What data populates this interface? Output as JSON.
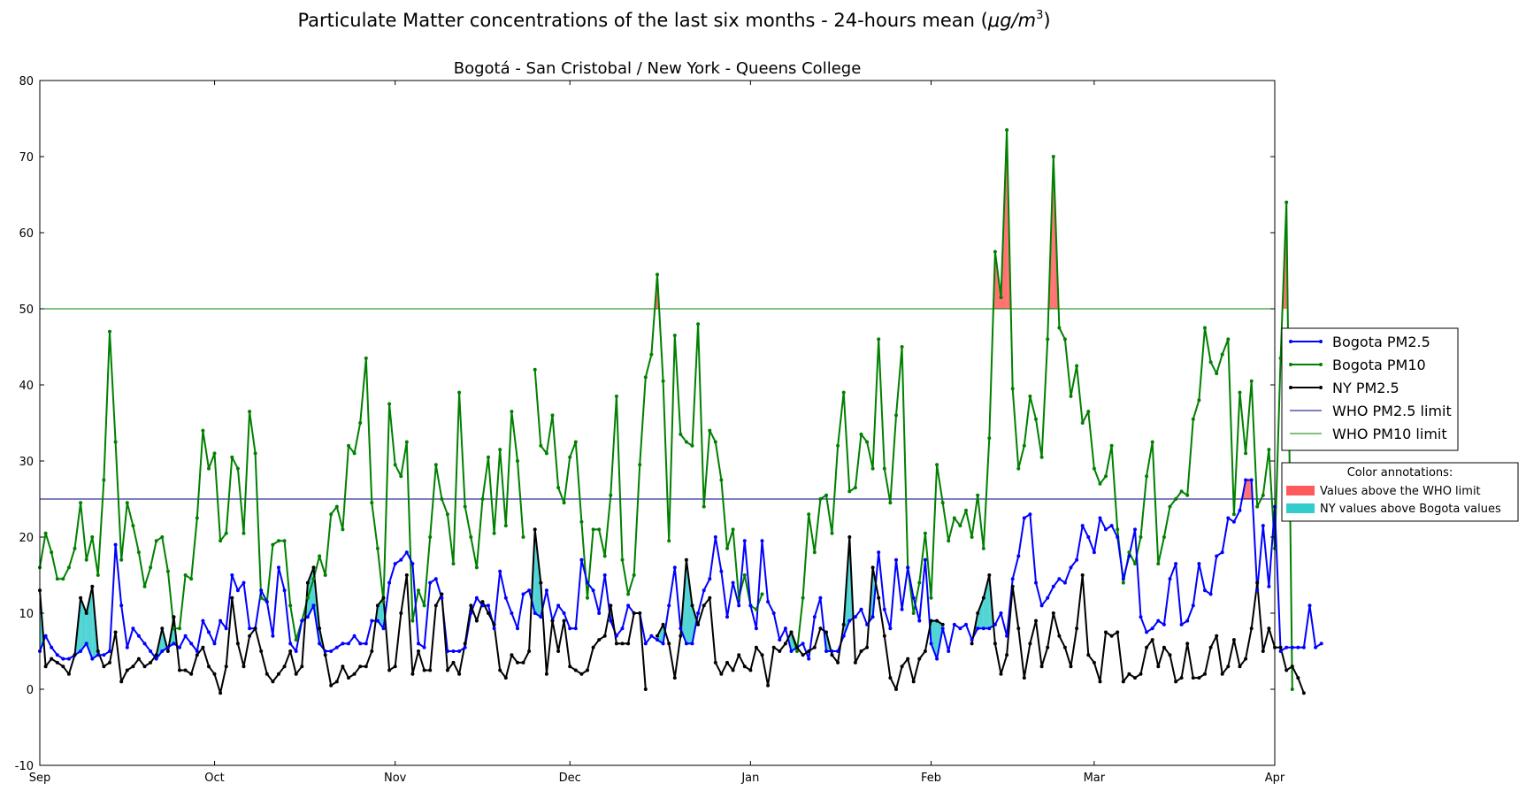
{
  "chart_data": {
    "type": "line",
    "title": "Particulate Matter concentrations of the last six months - 24-hours mean (μg/m³)",
    "title_text": "Particulate Matter concentrations of the last six months - 24-hours mean (",
    "title_unit": "μg/m",
    "title_exp": "3",
    "title_close": ")",
    "subtitle": "Bogotá - San Cristobal / New York - Queens College",
    "xlabel": "",
    "ylabel": "",
    "x_start": "Sep 1",
    "x_end": "Apr 1",
    "x_ticks": [
      {
        "day": 0,
        "label": "Sep"
      },
      {
        "day": 30,
        "label": "Oct"
      },
      {
        "day": 61,
        "label": "Nov"
      },
      {
        "day": 91,
        "label": "Dec"
      },
      {
        "day": 122,
        "label": "Jan"
      },
      {
        "day": 153,
        "label": "Feb"
      },
      {
        "day": 181,
        "label": "Mar"
      },
      {
        "day": 212,
        "label": "Apr"
      }
    ],
    "ylim": [
      -10,
      80
    ],
    "y_ticks": [
      -10,
      0,
      10,
      20,
      30,
      40,
      50,
      60,
      70,
      80
    ],
    "grid": false,
    "series": [
      {
        "name": "Bogota PM2.5",
        "color": "#0000ff",
        "values": [
          5,
          7,
          5.5,
          4.5,
          4,
          4,
          4.5,
          5,
          6,
          4,
          4.5,
          4.5,
          5,
          19,
          11,
          5.5,
          8,
          7,
          6,
          5,
          4,
          5,
          5.5,
          6,
          5.5,
          7,
          6,
          5,
          9,
          7.5,
          6,
          9,
          8,
          15,
          13,
          14,
          8,
          8,
          13,
          11.5,
          7,
          16,
          13,
          6,
          5,
          9,
          9.5,
          11,
          6,
          5,
          5,
          5.5,
          6,
          6,
          7,
          6,
          6,
          9,
          9,
          8,
          14,
          16.5,
          17,
          18,
          16.5,
          6,
          5.5,
          14,
          14.5,
          12,
          5,
          5,
          5,
          5.5,
          10,
          12,
          11,
          11,
          8,
          15.5,
          12,
          10,
          8,
          12.5,
          13,
          10,
          9.5,
          13,
          9,
          11,
          10,
          8,
          8,
          17,
          14,
          13,
          10,
          15,
          9,
          7,
          8,
          11,
          10,
          10,
          6,
          7,
          6.5,
          6,
          11,
          16,
          8,
          6,
          6,
          10,
          13,
          14.5,
          20,
          15.5,
          9.5,
          14,
          11,
          19.5,
          11,
          8,
          19.5,
          11.5,
          10,
          6.5,
          8,
          5,
          5.5,
          6,
          4,
          9.5,
          12,
          5,
          5,
          5,
          7,
          9,
          9.5,
          10.5,
          8.5,
          9.5,
          18,
          10.5,
          8,
          17,
          10.5,
          16,
          12,
          9,
          17,
          6,
          4,
          8,
          5,
          8.5,
          8,
          8.5,
          6.5,
          8,
          8,
          8,
          8.5,
          10,
          7,
          14.5,
          17.5,
          22.5,
          23,
          14,
          11,
          12,
          13.5,
          14.5,
          14,
          16,
          17,
          21.5,
          20,
          18,
          22.5,
          21,
          21.5,
          20,
          14.5,
          17.5,
          21,
          9.5,
          7.5,
          8,
          9,
          8.5,
          14.5,
          16.5,
          8.5,
          9,
          11,
          16.5,
          13,
          12.5,
          17.5,
          18,
          22.5,
          22,
          23.5,
          27.5,
          27.5,
          13,
          21.5,
          13.5,
          24,
          5,
          5.5,
          5.5,
          5.5,
          5.5,
          11,
          5.5,
          6
        ]
      },
      {
        "name": "Bogota PM10",
        "color": "#008000",
        "values": [
          16,
          20.5,
          18,
          14.5,
          14.5,
          16,
          18.5,
          24.5,
          17,
          20,
          15,
          27.5,
          47,
          32.5,
          17,
          24.5,
          21.5,
          18,
          13.5,
          16,
          19.5,
          20,
          15.5,
          8,
          8,
          15,
          14.5,
          22.5,
          34,
          29,
          31,
          19.5,
          20.5,
          30.5,
          29,
          20.5,
          36.5,
          31,
          12,
          11.5,
          19,
          19.5,
          19.5,
          11,
          6.5,
          9,
          12,
          14.5,
          17.5,
          15,
          23,
          24,
          21,
          32,
          31,
          35,
          43.5,
          24.5,
          18.5,
          11.5,
          37.5,
          29.5,
          28,
          32.5,
          9,
          13,
          11,
          20,
          29.5,
          25,
          23,
          16.5,
          39,
          24,
          20,
          16,
          25,
          30.5,
          20.5,
          31.5,
          21.5,
          36.5,
          30,
          20,
          null,
          42,
          32,
          31,
          36,
          26.5,
          24.5,
          30.5,
          32.5,
          22,
          12,
          21,
          21,
          17.5,
          25.5,
          38.5,
          17,
          12.5,
          15,
          29.5,
          41,
          44,
          54.5,
          40.5,
          19.5,
          46.5,
          33.5,
          32.5,
          32,
          48,
          24,
          34,
          32.5,
          27.5,
          18.5,
          21,
          12,
          15,
          11,
          10.5,
          12.5,
          null,
          null,
          null,
          null,
          7.5,
          5,
          12,
          23,
          18,
          25,
          25.5,
          20.5,
          32,
          39,
          26,
          26.5,
          33.5,
          32.5,
          29,
          46,
          29,
          24.5,
          36,
          45,
          16,
          10,
          14,
          20.5,
          12,
          29.5,
          24.5,
          19.5,
          22.5,
          21.5,
          23.5,
          20,
          25.5,
          18.5,
          33,
          57.5,
          51.5,
          73.5,
          39.5,
          29,
          32,
          38.5,
          35.5,
          30.5,
          46,
          70,
          47.5,
          46,
          38.5,
          42.5,
          35,
          36.5,
          29,
          27,
          28,
          32,
          21,
          14,
          18,
          16.5,
          20,
          28,
          32.5,
          16.5,
          20,
          24,
          25,
          26,
          25.5,
          35.5,
          38,
          47.5,
          43,
          41.5,
          44,
          46,
          23,
          39,
          31,
          40.5,
          24,
          25.5,
          31.5,
          18.5,
          43.5,
          64,
          0
        ]
      },
      {
        "name": "NY PM2.5",
        "color": "#000000",
        "values": [
          13,
          3,
          4,
          3.5,
          3,
          2,
          4.5,
          12,
          10,
          13.5,
          5,
          3,
          3.5,
          7.5,
          1,
          2.5,
          3,
          4,
          3,
          3.5,
          4.5,
          8,
          5,
          9.5,
          2.5,
          2.5,
          2,
          4.5,
          5.5,
          3,
          2,
          -0.5,
          3,
          12,
          6,
          3,
          7,
          8,
          5,
          2,
          1,
          2,
          3,
          5,
          2,
          3,
          14,
          16,
          8,
          4.5,
          0.5,
          1,
          3,
          1.5,
          2,
          3,
          3,
          5,
          11,
          12,
          2.5,
          3,
          10,
          15,
          2,
          5,
          2.5,
          2.5,
          11,
          12.5,
          2.5,
          3.5,
          2,
          6,
          11,
          9,
          11.5,
          10,
          8.5,
          2.5,
          1.5,
          4.5,
          3.5,
          3.5,
          5,
          21,
          14,
          2,
          9,
          5,
          9,
          3,
          2.5,
          2,
          2.5,
          5.5,
          6.5,
          7,
          11,
          6,
          6,
          6,
          10,
          10,
          0,
          null,
          7,
          8.5,
          6,
          1.5,
          7,
          17,
          11,
          8.5,
          11,
          12,
          3.5,
          2,
          3.5,
          2.5,
          4.5,
          3,
          2.5,
          5.5,
          4.5,
          0.5,
          5.5,
          5,
          6,
          7.5,
          5.5,
          4.5,
          5,
          5.5,
          8,
          7.5,
          4.5,
          3.5,
          8.5,
          20,
          3.5,
          5,
          5.5,
          16,
          12,
          7,
          1.5,
          0,
          3,
          4,
          1,
          4,
          5,
          9,
          9,
          8.5,
          null,
          null,
          null,
          null,
          6,
          10,
          12,
          15,
          6,
          2,
          4.5,
          13.5,
          8,
          1.5,
          6,
          9,
          3,
          5.5,
          10,
          7,
          5.5,
          3,
          8,
          15,
          4.5,
          3.5,
          1,
          7.5,
          7,
          7.5,
          1,
          2,
          1.5,
          2,
          5.5,
          6.5,
          3,
          5.5,
          4.5,
          1,
          1.5,
          6,
          1.5,
          1.5,
          2,
          5.5,
          7,
          2,
          3,
          6.5,
          3,
          4,
          8,
          14,
          5,
          8,
          5.5,
          5.5,
          2.5,
          3,
          1.5,
          -0.5
        ]
      }
    ],
    "limits": [
      {
        "name": "WHO PM2.5 limit",
        "value": 25,
        "color": "#000080"
      },
      {
        "name": "WHO PM10 limit",
        "value": 50,
        "color": "#008000"
      }
    ],
    "legend": {
      "placement": "right",
      "items": [
        "Bogota PM2.5",
        "Bogota PM10",
        "NY PM2.5",
        "WHO PM2.5 limit",
        "WHO PM10 limit"
      ]
    },
    "color_annotations": {
      "title": "Color annotations:",
      "items": [
        {
          "label": "Values above the WHO limit",
          "color": "#ff5a5a"
        },
        {
          "label": "NY values above Bogota values",
          "color": "#33cccc"
        }
      ]
    }
  }
}
